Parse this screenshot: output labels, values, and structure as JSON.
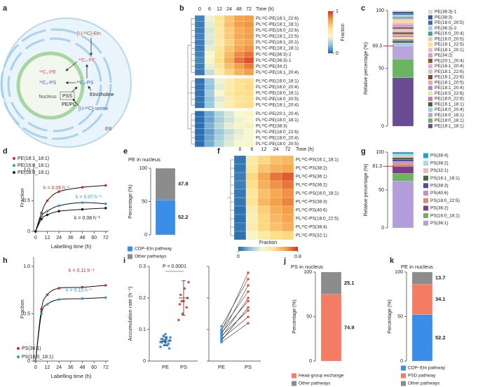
{
  "panel_labels": [
    "a",
    "b",
    "c",
    "d",
    "e",
    "f",
    "g",
    "h",
    "i",
    "j",
    "k"
  ],
  "diagram": {
    "etn": "[U-¹³C]-Etn",
    "pe_er": "¹³C₂-PE",
    "pe_nucleus": "¹³C₂-PE",
    "ps_nucleus": "¹³C₃-PS",
    "ps_er": "¹³C₃-PS",
    "etn_choline": "Etn/choline",
    "pss": "PSS",
    "pe_pc": "PE/PC",
    "serine": "[U-¹³C]-serine",
    "nucleus": "Nucleus",
    "er": "ER"
  },
  "chart_data": [
    {
      "type": "heatmap",
      "columns": [
        0,
        6,
        12,
        24,
        48,
        72
      ],
      "x_label": "Time (h)",
      "rows": [
        "PL¹³C-PE(18:1_22:6)",
        "PL¹³C-PE(18:1_18:1)",
        "PL¹³C-PE(16:0_22:6)",
        "PL¹³C-PE(18:1_22:5)",
        "PL¹³C-PE(18:1_20:1)",
        "PL¹³C-PE(18:1_18:1)",
        "PL¹³C-PE(36:3)-2",
        "PL¹³C-PE(36:3)-1",
        "PL¹³C-PE(34:2)",
        "PL¹³C-PE(16:1_20:4)",
        "PL¹³C-PE(16:0_18:1)",
        "PL¹³C-PE(16:0_20:4)",
        "PL¹³C-PE(18:0_18:1)",
        "PL¹³C-PE(16:0_20:5)",
        "PL¹³C-PE(18:1_20:4)",
        "PL¹³C-PE(20:1_20:4)",
        "PL¹³C-PE(18:0_18:1)",
        "PL¹³C-PE(38:3)",
        "PL¹³C-PE(18:0_22:6)",
        "PL¹³C-PE(18:0_20:4)",
        "PL¹³C-PE(18:0_20:5)"
      ],
      "values": [
        [
          0.06,
          0.38,
          0.55,
          0.68,
          0.78,
          0.8
        ],
        [
          0.05,
          0.36,
          0.56,
          0.7,
          0.8,
          0.82
        ],
        [
          0.05,
          0.34,
          0.52,
          0.66,
          0.76,
          0.8
        ],
        [
          0.06,
          0.35,
          0.54,
          0.67,
          0.77,
          0.8
        ],
        [
          0.05,
          0.33,
          0.5,
          0.64,
          0.75,
          0.78
        ],
        [
          0.05,
          0.36,
          0.55,
          0.68,
          0.78,
          0.82
        ],
        [
          0.06,
          0.4,
          0.58,
          0.72,
          0.84,
          0.88
        ],
        [
          0.07,
          0.42,
          0.6,
          0.75,
          0.88,
          0.94
        ],
        [
          0.05,
          0.37,
          0.55,
          0.7,
          0.8,
          0.86
        ],
        [
          0.04,
          0.3,
          0.5,
          0.64,
          0.74,
          0.8
        ],
        [
          0.03,
          0.22,
          0.38,
          0.5,
          0.58,
          0.6
        ],
        [
          0.03,
          0.2,
          0.36,
          0.5,
          0.58,
          0.62
        ],
        [
          0.03,
          0.24,
          0.4,
          0.52,
          0.6,
          0.6
        ],
        [
          0.03,
          0.2,
          0.35,
          0.48,
          0.56,
          0.58
        ],
        [
          0.03,
          0.22,
          0.38,
          0.5,
          0.58,
          0.6
        ],
        [
          0.02,
          0.14,
          0.26,
          0.34,
          0.4,
          0.42
        ],
        [
          0.02,
          0.13,
          0.24,
          0.32,
          0.38,
          0.4
        ],
        [
          0.02,
          0.16,
          0.28,
          0.36,
          0.42,
          0.44
        ],
        [
          0.02,
          0.12,
          0.22,
          0.3,
          0.36,
          0.4
        ],
        [
          0.02,
          0.14,
          0.25,
          0.33,
          0.38,
          0.4
        ],
        [
          0.02,
          0.15,
          0.27,
          0.35,
          0.4,
          0.42
        ]
      ],
      "clim": [
        0,
        1
      ],
      "cticks": [
        0,
        1
      ],
      "colorbar_label": "Fraction",
      "colorbar": "vertical",
      "colorscale": [
        "#2166ac",
        "#92c5de",
        "#f7f7d0",
        "#fee08b",
        "#f4a049",
        "#d7301f"
      ]
    },
    {
      "type": "stacked_bar",
      "y_label": "Relative percentage (%)",
      "ylim": [
        0,
        100
      ],
      "yticks": [
        0,
        50,
        100
      ],
      "marker": 69.3,
      "legend_order": "top-down",
      "series": [
        {
          "name": "PE(18:1_18:1)",
          "color": "#6a4c93",
          "values": [
            42
          ]
        },
        {
          "name": "PE(18:0_18:1)",
          "color": "#6cb560",
          "values": [
            16
          ]
        },
        {
          "name": "PE(16:0_18:1)",
          "color": "#b9a4dc",
          "values": [
            11.3
          ]
        },
        {
          "name": "PE(18:0_20:4)",
          "color": "#a9c7e8",
          "values": [
            2.8
          ]
        },
        {
          "name": "PE(16:1_18:1)",
          "color": "#2f6b3a",
          "values": [
            1.6
          ]
        },
        {
          "name": "PE(18:0_22:6)",
          "color": "#c77db5",
          "values": [
            1.5
          ]
        },
        {
          "name": "PE(16:0_22:6)",
          "color": "#e6e6a0",
          "values": [
            1.8
          ]
        },
        {
          "name": "PE(18:1_20:4)",
          "color": "#9b8fc7",
          "values": [
            1.2
          ]
        },
        {
          "name": "PE(18:1_20:5)",
          "color": "#f2a3a3",
          "values": [
            1.4
          ]
        },
        {
          "name": "PE(16:1_22:6)",
          "color": "#7a4a2a",
          "values": [
            1.6
          ]
        },
        {
          "name": "PE(18:1_22:6)",
          "color": "#c9c9c9",
          "values": [
            1.7
          ]
        },
        {
          "name": "PE(16:1_20:4)",
          "color": "#e3b0d0",
          "values": [
            1.3
          ]
        },
        {
          "name": "PE(20:1_20:4)",
          "color": "#8b5a2b",
          "values": [
            1.4
          ]
        },
        {
          "name": "PE(34:2)",
          "color": "#c7a0d8",
          "values": [
            2.5
          ]
        },
        {
          "name": "PE(18:1_20:1)",
          "color": "#f5b7c0",
          "values": [
            1.6
          ]
        },
        {
          "name": "PE(18:1_22:5)",
          "color": "#ffe08a",
          "values": [
            1.5
          ]
        },
        {
          "name": "PE(16:0_20:5)",
          "color": "#f6c6a8",
          "values": [
            1.8
          ]
        },
        {
          "name": "PE(16:0_20:4)",
          "color": "#4aa3a3",
          "values": [
            1.3
          ]
        },
        {
          "name": "PE(36:3)-2",
          "color": "#b7c7e6",
          "values": [
            2.0
          ]
        },
        {
          "name": "PE(18:0_20:5)",
          "color": "#2e6db4",
          "values": [
            1.2
          ]
        },
        {
          "name": "PE(38:3)",
          "color": "#3a5a8c",
          "values": [
            1.5
          ]
        },
        {
          "name": "PE(36:3)-1",
          "color": "#d9d9d9",
          "values": [
            1.0
          ]
        }
      ]
    },
    {
      "type": "line",
      "x_label": "Labelling time (h)",
      "y_label": "Fraction",
      "x": [
        0,
        6,
        12,
        24,
        48,
        72
      ],
      "xlim": [
        -2,
        75
      ],
      "xticks": [
        0,
        12,
        24,
        36,
        48,
        60,
        72
      ],
      "ylim": [
        0,
        1.1
      ],
      "yticks": [
        0,
        0.5,
        {
          "value": 1,
          "label": "1.0"
        }
      ],
      "series": [
        {
          "name": "PE(18:1_18:1)",
          "color": "#d62728",
          "values": [
            0,
            0.3,
            0.5,
            0.65,
            0.72,
            0.75
          ]
        },
        {
          "name": "PE(16:0_18:1)",
          "color": "#2e9bd6",
          "values": [
            0,
            0.25,
            0.33,
            0.42,
            0.47,
            0.45
          ]
        },
        {
          "name": "PE(18:0_18:1)",
          "color": "#222222",
          "values": [
            0,
            0.2,
            0.27,
            0.33,
            0.36,
            0.38
          ]
        }
      ],
      "annotations": [
        {
          "text": "k = 0.06 h⁻¹",
          "color": "#d62728"
        },
        {
          "text": "k = 0.07 h⁻¹",
          "color": "#2e9bd6"
        },
        {
          "text": "k = 0.08 h⁻¹",
          "color": "#222222"
        }
      ]
    },
    {
      "type": "stacked_bar",
      "title": "PE in nucleus",
      "y_label": "Percentage (%)",
      "ylim": [
        0,
        100
      ],
      "yticks": [
        0,
        50,
        100
      ],
      "legend_order": "bottom-up",
      "show_values": true,
      "series": [
        {
          "name": "CDP–Etn pathway",
          "color": "#3b8ee8",
          "values": [
            52.2
          ]
        },
        {
          "name": "Other pathways",
          "color": "#8c8c8c",
          "values": [
            47.8
          ]
        }
      ]
    },
    {
      "type": "heatmap",
      "columns": [
        0,
        6,
        12,
        24,
        72
      ],
      "x_label": "Time (h)",
      "rows": [
        "PL¹³C-PS(16:1_18:1)",
        "PL¹³C-PS(38:2)",
        "PL¹³C-PS(36:1)",
        "PL¹³C-PS(36:2)",
        "PL¹³C-PS(16:0_18:1)",
        "PL¹³C-PS(38:3)",
        "PL¹³C-PS(40:6)",
        "PL¹³C-PS(18:0_22:5)",
        "PL¹³C-PS(38:4)",
        "PL¹³C-PS(32:1)"
      ],
      "values": [
        [
          0.03,
          0.42,
          0.5,
          0.56,
          0.58
        ],
        [
          0.03,
          0.44,
          0.55,
          0.6,
          0.62
        ],
        [
          0.04,
          0.5,
          0.62,
          0.7,
          0.74
        ],
        [
          0.04,
          0.48,
          0.6,
          0.66,
          0.7
        ],
        [
          0.03,
          0.44,
          0.56,
          0.62,
          0.66
        ],
        [
          0.03,
          0.46,
          0.58,
          0.64,
          0.68
        ],
        [
          0.02,
          0.4,
          0.52,
          0.6,
          0.64
        ],
        [
          0.02,
          0.38,
          0.5,
          0.58,
          0.62
        ],
        [
          0.03,
          0.4,
          0.5,
          0.56,
          0.6
        ],
        [
          0.02,
          0.34,
          0.42,
          0.48,
          0.5
        ]
      ],
      "clim": [
        0,
        0.8
      ],
      "cticks": [
        0,
        0.8
      ],
      "colorbar_label": "Fraction",
      "colorbar": "horizontal",
      "colorscale": [
        "#2166ac",
        "#92c5de",
        "#f7f7d0",
        "#fee08b",
        "#f4a049",
        "#d7301f"
      ]
    },
    {
      "type": "stacked_bar",
      "y_label": "Relative percentage (%)",
      "ylim": [
        0,
        100
      ],
      "yticks": [
        0,
        50,
        100
      ],
      "marker": 81.3,
      "legend_order": "top-down",
      "series": [
        {
          "name": "PS(36:1)",
          "color": "#b39ddb",
          "values": [
            62
          ]
        },
        {
          "name": "PS(16:0_18:1)",
          "color": "#6cb560",
          "values": [
            10
          ]
        },
        {
          "name": "PS(36:2)",
          "color": "#7a3e8c",
          "values": [
            9.3
          ]
        },
        {
          "name": "PS(18:0_22:5)",
          "color": "#d98c6a",
          "values": [
            3.0
          ]
        },
        {
          "name": "PS(40:6)",
          "color": "#c58fbf",
          "values": [
            3.5
          ]
        },
        {
          "name": "PS(38:3)",
          "color": "#4d4f9e",
          "values": [
            2.5
          ]
        },
        {
          "name": "PS(16:1_18:1)",
          "color": "#3e6b3e",
          "values": [
            2.5
          ]
        },
        {
          "name": "PS(32:1)",
          "color": "#f3b5b5",
          "values": [
            2.2
          ]
        },
        {
          "name": "PS(38:2)",
          "color": "#a8d8ea",
          "values": [
            2.5
          ]
        },
        {
          "name": "PS(38:4)",
          "color": "#1fa3c9",
          "values": [
            2.5
          ]
        }
      ]
    },
    {
      "type": "line",
      "x_label": "Labelling time (h)",
      "y_label": "Fraction",
      "x": [
        0,
        6,
        12,
        24,
        48,
        72
      ],
      "xlim": [
        -2,
        75
      ],
      "xticks": [
        0,
        12,
        24,
        36,
        48,
        60,
        72
      ],
      "ylim": [
        0,
        1.1
      ],
      "yticks": [
        0,
        0.5,
        {
          "value": 1,
          "label": "1.0"
        }
      ],
      "series": [
        {
          "name": "PS(36:1)",
          "color": "#d62728",
          "values": [
            0,
            0.55,
            0.7,
            0.77,
            0.78,
            0.8
          ]
        },
        {
          "name": "PS(16:0_18:1)",
          "color": "#2e9bd6",
          "values": [
            0,
            0.5,
            0.6,
            0.65,
            0.66,
            0.67
          ]
        }
      ],
      "annotations": [
        {
          "text": "k = 0.11 h⁻¹",
          "color": "#d62728"
        },
        {
          "text": "k = 0.15 h⁻¹",
          "color": "#2e9bd6"
        }
      ]
    },
    {
      "type": "strip",
      "y_label": "Accumulation rate (h⁻¹)",
      "categories": [
        "PE",
        "PS"
      ],
      "colors": [
        "#3a8fd9",
        "#e0553a"
      ],
      "ylim": [
        0,
        0.3
      ],
      "yticks": [
        0,
        0.1,
        0.2,
        0.3
      ],
      "annotation": "P < 0.0001",
      "values": [
        [
          0.045,
          0.05,
          0.055,
          0.06,
          0.06,
          0.065,
          0.07,
          0.07,
          0.075,
          0.08,
          0.05,
          0.06,
          0.065,
          0.055,
          0.07,
          0.085,
          0.04,
          0.06,
          0.075,
          0.065
        ],
        [
          0.13,
          0.15,
          0.17,
          0.18,
          0.19,
          0.2,
          0.21,
          0.23,
          0.25,
          0.19
        ]
      ],
      "means": [
        0.063,
        0.2
      ],
      "sd": [
        0.013,
        0.055
      ]
    },
    {
      "type": "paired",
      "categories": [
        "PE",
        "PS"
      ],
      "colors": [
        "#3a8fd9",
        "#e0553a"
      ],
      "ylim": [
        0,
        0.3
      ],
      "yticks": [
        0,
        0.1,
        0.2,
        0.3
      ],
      "pairs": [
        [
          0.06,
          0.12
        ],
        [
          0.07,
          0.14
        ],
        [
          0.08,
          0.16
        ],
        [
          0.065,
          0.17
        ],
        [
          0.09,
          0.19
        ],
        [
          0.075,
          0.2
        ],
        [
          0.1,
          0.22
        ],
        [
          0.085,
          0.24
        ],
        [
          0.11,
          0.26
        ],
        [
          0.095,
          0.28
        ]
      ]
    },
    {
      "type": "stacked_bar",
      "title": "PS in nucleus",
      "y_label": "Percentage (%)",
      "ylim": [
        0,
        100
      ],
      "yticks": [
        0,
        50,
        100
      ],
      "legend_order": "bottom-up",
      "show_values": true,
      "series": [
        {
          "name": "Head-group exchange",
          "color": "#f47c63",
          "values": [
            74.9
          ]
        },
        {
          "name": "Other pathways",
          "color": "#8c8c8c",
          "values": [
            25.1
          ]
        }
      ]
    },
    {
      "type": "stacked_bar",
      "title": "PE in nucleus",
      "y_label": "Percentage (%)",
      "ylim": [
        0,
        100
      ],
      "yticks": [
        0,
        50,
        100
      ],
      "legend_order": "bottom-up",
      "show_values": true,
      "series": [
        {
          "name": "CDP–Etn pathway",
          "color": "#3b8ee8",
          "values": [
            52.2
          ]
        },
        {
          "name": "PSD pathway",
          "color": "#f47c63",
          "values": [
            34.1
          ]
        },
        {
          "name": "Other pathways",
          "color": "#8c8c8c",
          "values": [
            13.7
          ]
        }
      ]
    }
  ]
}
